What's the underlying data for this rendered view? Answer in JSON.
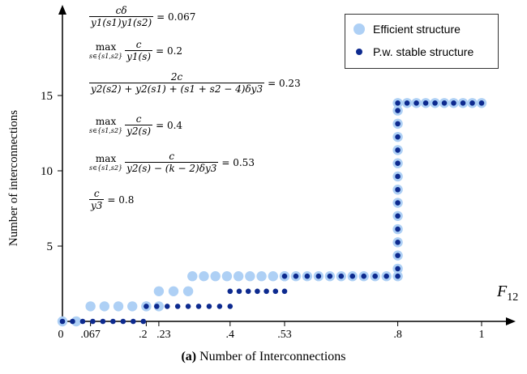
{
  "chart_data": {
    "type": "scatter",
    "caption_tag": "(a)",
    "caption_text": "Number of Interconnections",
    "ylabel": "Number of interconnections",
    "xlabel": "F12",
    "xlabel_main": "F",
    "xlabel_sub": "12",
    "xlim": [
      0,
      1.05
    ],
    "ylim": [
      0,
      18
    ],
    "xticks": [
      {
        "v": 0,
        "label": "0"
      },
      {
        "v": 0.067,
        "label": ".067"
      },
      {
        "v": 0.2,
        "label": ".2"
      },
      {
        "v": 0.23,
        "label": ".23"
      },
      {
        "v": 0.4,
        "label": ".4"
      },
      {
        "v": 0.53,
        "label": ".53"
      },
      {
        "v": 0.8,
        "label": ".8"
      },
      {
        "v": 1,
        "label": "1"
      }
    ],
    "yticks": [
      {
        "v": 5,
        "label": "5"
      },
      {
        "v": 10,
        "label": "10"
      },
      {
        "v": 15,
        "label": "15"
      }
    ],
    "legend": {
      "placement": "top-right",
      "entries": [
        {
          "name": "Efficient structure",
          "color": "#aed0f5"
        },
        {
          "name": "P.w. stable structure",
          "color": "#0d2a8f"
        }
      ]
    },
    "series": [
      {
        "name": "Efficient structure",
        "color": "#aed0f5",
        "segments": [
          {
            "x_start": 0,
            "x_end": 0.033,
            "n": 2,
            "y": 0
          },
          {
            "x_start": 0.067,
            "x_end": 0.2,
            "n": 5,
            "y": 1
          },
          {
            "x_start": 0.2,
            "x_end": 0.23,
            "n": 2,
            "y": 1
          },
          {
            "x_start": 0.23,
            "x_end": 0.3,
            "n": 3,
            "y": 2
          },
          {
            "x_start": 0.31,
            "x_end": 0.53,
            "n": 9,
            "y": 3
          },
          {
            "x_start": 0.53,
            "x_end": 0.8,
            "n": 11,
            "y": 3
          },
          {
            "x_start": 0.8,
            "x_end": 1.0,
            "n": 10,
            "y": 14.5
          },
          {
            "x_start": 0.8,
            "x_end": 0.8,
            "n": 13,
            "y_start": 3.5,
            "y_end": 14.0
          }
        ]
      },
      {
        "name": "P.w. stable structure",
        "color": "#0d2a8f",
        "segments": [
          {
            "x_start": 0,
            "x_end": 0.193,
            "n": 9,
            "y": 0
          },
          {
            "x_start": 0.2,
            "x_end": 0.4,
            "n": 9,
            "y": 1
          },
          {
            "x_start": 0.4,
            "x_end": 0.53,
            "n": 7,
            "y": 2
          },
          {
            "x_start": 0.53,
            "x_end": 0.8,
            "n": 11,
            "y": 3
          },
          {
            "x_start": 0.8,
            "x_end": 1.0,
            "n": 10,
            "y": 14.5
          },
          {
            "x_start": 0.8,
            "x_end": 0.8,
            "n": 13,
            "y_start": 3.5,
            "y_end": 14.0
          }
        ]
      }
    ]
  },
  "annotations": {
    "a1": {
      "num": "cδ",
      "den": "y1(s1)y1(s2)",
      "rhs": "= 0.067"
    },
    "a2": {
      "op": "max",
      "sub": "s∈{s1,s2}",
      "num": "c",
      "den": "y1(s)",
      "rhs": "= 0.2"
    },
    "a3": {
      "num": "2c",
      "den": "y2(s2) + y2(s1) + (s1 + s2 − 4)δy3",
      "rhs": "= 0.23"
    },
    "a4": {
      "op": "max",
      "sub": "s∈{s1,s2}",
      "num": "c",
      "den": "y2(s)",
      "rhs": "= 0.4"
    },
    "a5": {
      "op": "max",
      "sub": "s∈{s1,s2}",
      "num": "c",
      "den": "y2(s) − (k − 2)δy3",
      "rhs": "= 0.53"
    },
    "a6": {
      "num": "c",
      "den": "y3",
      "rhs": "= 0.8"
    }
  }
}
